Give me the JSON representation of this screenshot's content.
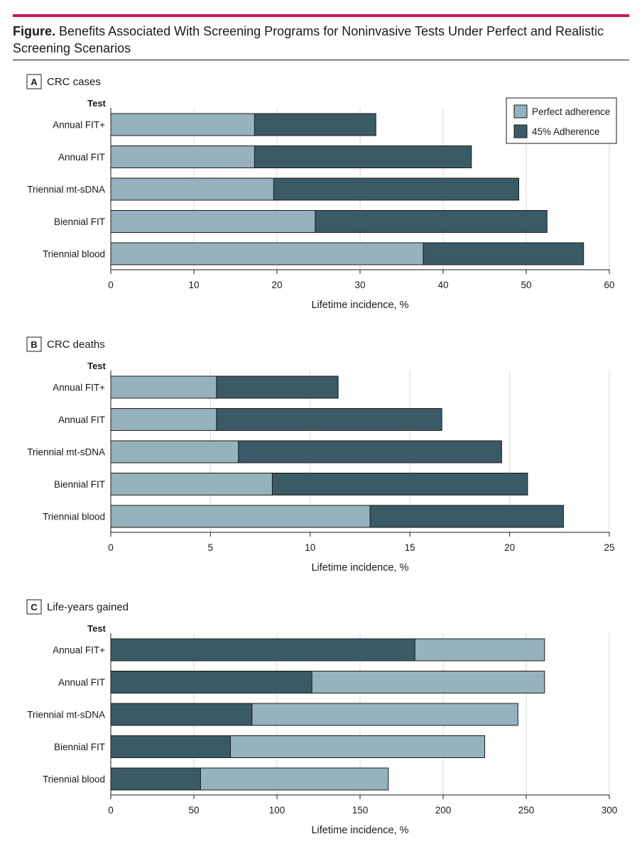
{
  "figure": {
    "title_prefix": "Figure.",
    "title_text": "Benefits Associated With Screening Programs for Noninvasive Tests Under Perfect and Realistic Screening Scenarios"
  },
  "colors": {
    "perfect": "#95b2bd",
    "realistic": "#3a5a66",
    "accent": "#c8175d"
  },
  "chart_data": [
    {
      "type": "bar",
      "orientation": "horizontal",
      "stacking": "overlay",
      "panel_letter": "A",
      "title": "CRC cases",
      "category_axis_title": "Test",
      "xlabel": "Lifetime incidence, %",
      "xlim": [
        0,
        60
      ],
      "xticks": [
        0,
        10,
        20,
        30,
        40,
        50,
        60
      ],
      "grid": true,
      "categories": [
        "Annual FIT+",
        "Annual FIT",
        "Triennial mt-sDNA",
        "Biennial FIT",
        "Triennial blood"
      ],
      "series": [
        {
          "name": "Perfect adherence",
          "color": "#95b2bd",
          "values": [
            17.3,
            17.3,
            19.6,
            24.6,
            37.6
          ]
        },
        {
          "name": "45% Adherence",
          "color": "#3a5a66",
          "values": [
            31.9,
            43.4,
            49.1,
            52.5,
            56.9
          ]
        }
      ],
      "draw_order": [
        "45% Adherence",
        "Perfect adherence"
      ],
      "legend": {
        "position": "top-right",
        "entries": [
          "Perfect adherence",
          "45% Adherence"
        ]
      }
    },
    {
      "type": "bar",
      "orientation": "horizontal",
      "stacking": "overlay",
      "panel_letter": "B",
      "title": "CRC deaths",
      "category_axis_title": "Test",
      "xlabel": "Lifetime incidence, %",
      "xlim": [
        0,
        25
      ],
      "xticks": [
        0,
        5,
        10,
        15,
        20,
        25
      ],
      "grid": true,
      "categories": [
        "Annual FIT+",
        "Annual FIT",
        "Triennial mt-sDNA",
        "Biennial FIT",
        "Triennial blood"
      ],
      "series": [
        {
          "name": "Perfect adherence",
          "color": "#95b2bd",
          "values": [
            5.3,
            5.3,
            6.4,
            8.1,
            13.0
          ]
        },
        {
          "name": "45% Adherence",
          "color": "#3a5a66",
          "values": [
            11.4,
            16.6,
            19.6,
            20.9,
            22.7
          ]
        }
      ],
      "draw_order": [
        "45% Adherence",
        "Perfect adherence"
      ]
    },
    {
      "type": "bar",
      "orientation": "horizontal",
      "stacking": "overlay",
      "panel_letter": "C",
      "title": "Life-years gained",
      "category_axis_title": "Test",
      "xlabel": "Lifetime incidence, %",
      "xlim": [
        0,
        300
      ],
      "xticks": [
        0,
        50,
        100,
        150,
        200,
        250,
        300
      ],
      "grid": true,
      "categories": [
        "Annual FIT+",
        "Annual FIT",
        "Triennial mt-sDNA",
        "Biennial FIT",
        "Triennial blood"
      ],
      "series": [
        {
          "name": "Perfect adherence",
          "color": "#95b2bd",
          "values": [
            261,
            261,
            245,
            225,
            167
          ]
        },
        {
          "name": "45% Adherence",
          "color": "#3a5a66",
          "values": [
            183,
            121,
            85,
            72,
            54
          ]
        }
      ],
      "draw_order": [
        "Perfect adherence",
        "45% Adherence"
      ]
    }
  ]
}
